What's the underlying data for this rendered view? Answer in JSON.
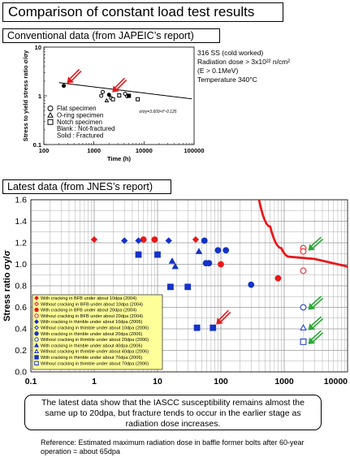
{
  "title": "Comparison of constant load test results",
  "conventional": {
    "label": "Conventional data (from JAPEIC’s report)",
    "info": [
      "316 SS (cold worked)",
      "Radiation dose > 3x10²² n/cm²",
      "(E > 0.1MeV)",
      "Temperature 340°C"
    ],
    "legend": [
      "Flat specimen",
      "O-ring specimen",
      "Notch specimen",
      "Blank : Not-fractured",
      "Solid : Fractured"
    ],
    "curve_label": "σ/σy=3.609×t^-0.125"
  },
  "latest_label": "Latest data (from JNES’s report)",
  "conclusion": "The latest data show that the IASCC susceptibility remains almost the same up to 20dpa, but fracture tends to occur in the earlier stage as radiation dose increases.",
  "reference": "Reference: Estimated maximum radiation dose in baffle former bolts after 60-year operation = about 65dpa",
  "colors": {
    "red": "#e8181b",
    "blue": "#1432c8",
    "green": "#2aa835",
    "legend_bg": "#ffff99"
  },
  "chart_data": [
    {
      "type": "scatter",
      "title": "",
      "xlabel": "Time (h)",
      "ylabel": "Stress to yield stress ratio σ/σy",
      "xscale": "log",
      "yscale": "log",
      "xlim": [
        100,
        100000
      ],
      "ylim": [
        0.1,
        10
      ],
      "xticks": [
        "100",
        "1000",
        "10000",
        "100000"
      ],
      "yticks": [
        "0.1",
        "1",
        "10"
      ],
      "curve": {
        "a": 3.609,
        "b": -0.125
      },
      "points": [
        {
          "x": 250,
          "y": 1.6,
          "shape": "circle",
          "filled": true
        },
        {
          "x": 1500,
          "y": 1.2,
          "shape": "circle",
          "filled": false
        },
        {
          "x": 1400,
          "y": 1.0,
          "shape": "circle",
          "filled": false
        },
        {
          "x": 2000,
          "y": 1.05,
          "shape": "circle",
          "filled": true
        },
        {
          "x": 2200,
          "y": 0.9,
          "shape": "circle",
          "filled": false
        },
        {
          "x": 1800,
          "y": 0.8,
          "shape": "triangle",
          "filled": false
        },
        {
          "x": 2400,
          "y": 0.85,
          "shape": "square",
          "filled": false
        },
        {
          "x": 3200,
          "y": 1.02,
          "shape": "square",
          "filled": false
        },
        {
          "x": 4600,
          "y": 0.98,
          "shape": "circle",
          "filled": false
        },
        {
          "x": 4200,
          "y": 1.1,
          "shape": "circle",
          "filled": false
        },
        {
          "x": 5000,
          "y": 1.0,
          "shape": "square",
          "filled": true
        },
        {
          "x": 7500,
          "y": 0.85,
          "shape": "square",
          "filled": false
        }
      ],
      "arrows": [
        {
          "x": 250,
          "y": 1.6
        },
        {
          "x": 2000,
          "y": 1.05
        }
      ],
      "legend_position": "bottom-left"
    },
    {
      "type": "scatter",
      "title": "",
      "xlabel": "",
      "ylabel": "Stress ratio σy/σ",
      "xscale": "log",
      "xlim": [
        0.1,
        10000
      ],
      "ylim": [
        0,
        1.6
      ],
      "xticks": [
        "0.1",
        "1",
        "10",
        "100",
        "1000",
        "10000"
      ],
      "yticks": [
        "0.0",
        "0.2",
        "0.4",
        "0.6",
        "0.8",
        "1.0",
        "1.2",
        "1.4",
        "1.6"
      ],
      "grid": true,
      "legend_position": "bottom-left",
      "series": [
        {
          "name": "With cracking in BFB under about 10dpa (2004)",
          "color": "red",
          "shape": "diamond",
          "filled": true,
          "points": [
            [
              1,
              1.23
            ],
            [
              40,
              1.23
            ]
          ]
        },
        {
          "name": "Without cracking in BFB under about 10dpa (2004)",
          "color": "red",
          "shape": "diamond",
          "filled": false,
          "points": []
        },
        {
          "name": "With cracking in BFB under about 20dpa (2004)",
          "color": "red",
          "shape": "circle",
          "filled": true,
          "points": [
            [
              6,
              1.23
            ],
            [
              9,
              1.23
            ],
            [
              100,
              1.0
            ],
            [
              800,
              0.87
            ]
          ]
        },
        {
          "name": "Without cracking in BFB under about 20dpa (2004)",
          "color": "red",
          "shape": "circle",
          "filled": false,
          "points": [
            [
              2000,
              1.15
            ],
            [
              2000,
              1.12
            ],
            [
              2000,
              0.94
            ]
          ]
        },
        {
          "name": "With cracking in thimble under about 10dpa (2006)",
          "color": "blue",
          "shape": "diamond",
          "filled": true,
          "points": [
            [
              3,
              1.22
            ],
            [
              5,
              1.22
            ],
            [
              15,
              1.22
            ]
          ]
        },
        {
          "name": "Without cracking in thimble under about 10dpa (2006)",
          "color": "blue",
          "shape": "diamond",
          "filled": false,
          "points": []
        },
        {
          "name": "With cracking in thimble under about 20dpa (2006)",
          "color": "blue",
          "shape": "circle",
          "filled": true,
          "points": [
            [
              55,
              1.22
            ],
            [
              58,
              1.01
            ],
            [
              65,
              1.01
            ],
            [
              90,
              1.13
            ],
            [
              120,
              1.13
            ],
            [
              300,
              0.81
            ]
          ]
        },
        {
          "name": "Without cracking in thimble under about 20dpa (2006)",
          "color": "blue",
          "shape": "circle",
          "filled": false,
          "points": [
            [
              2000,
              0.6
            ]
          ]
        },
        {
          "name": "With cracking in thimble under about 40dpa (2006)",
          "color": "blue",
          "shape": "triangle",
          "filled": true,
          "points": [
            [
              17,
              1.03
            ],
            [
              19,
              0.98
            ],
            [
              45,
              1.12
            ]
          ]
        },
        {
          "name": "Without cracking in thimble under about 40dpa (2006)",
          "color": "blue",
          "shape": "triangle",
          "filled": false,
          "points": [
            [
              2000,
              0.41
            ]
          ]
        },
        {
          "name": "With cracking in thimble under about 70dpa (2006)",
          "color": "blue",
          "shape": "square",
          "filled": true,
          "points": [
            [
              5,
              1.09
            ],
            [
              10,
              1.09
            ],
            [
              16,
              0.79
            ],
            [
              30,
              0.79
            ],
            [
              42,
              0.41
            ],
            [
              75,
              0.41
            ]
          ]
        },
        {
          "name": "Without cracking in thimble under about 70dpa (2006)",
          "color": "blue",
          "shape": "square",
          "filled": false,
          "points": [
            [
              2000,
              0.28
            ]
          ]
        }
      ],
      "threshold_curve": [
        [
          400,
          1.6
        ],
        [
          600,
          1.35
        ],
        [
          900,
          1.15
        ],
        [
          1200,
          1.07
        ],
        [
          3000,
          1.05
        ],
        [
          10000,
          0.98
        ]
      ],
      "red_arrow": {
        "x": 75,
        "y": 0.41
      },
      "green_arrows": [
        {
          "x": 2000,
          "y": 1.15
        },
        {
          "x": 2000,
          "y": 0.6
        },
        {
          "x": 2000,
          "y": 0.41
        },
        {
          "x": 2000,
          "y": 0.28
        }
      ]
    }
  ]
}
